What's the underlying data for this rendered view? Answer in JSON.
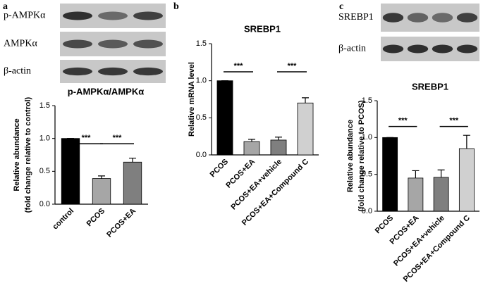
{
  "chart_data": [
    {
      "type": "bar",
      "panel": "a",
      "title": "p-AMPKα/AMPKα",
      "blot_labels": [
        "p-AMPKα",
        "AMPKα",
        "β-actin"
      ],
      "ylabel": [
        "Relative abundance",
        "(fold change relative to control)"
      ],
      "categories": [
        "control",
        "PCOS",
        "PCOS+EA"
      ],
      "values": [
        1.0,
        0.39,
        0.64
      ],
      "errors": [
        0,
        0.04,
        0.06
      ],
      "colors": [
        "#000000",
        "#a6a6a6",
        "#7f7f7f"
      ],
      "ylim": [
        0,
        1.5
      ],
      "yticks": [
        {
          "value": 0,
          "label": "0.0"
        },
        {
          "value": 0.5,
          "label": "0.5"
        },
        {
          "value": 1,
          "label": "1.0"
        },
        {
          "value": 1.5,
          "label": "1.5"
        }
      ],
      "annotations": [
        "***",
        "***"
      ]
    },
    {
      "type": "bar",
      "panel": "b",
      "title": "SREBP1",
      "ylabel": [
        "Relative mRNA level"
      ],
      "categories": [
        "PCOS",
        "PCOS+EA",
        "PCOS+EA+vehicle",
        "PCOS+EA+Compound C"
      ],
      "values": [
        1.0,
        0.18,
        0.2,
        0.7
      ],
      "errors": [
        0,
        0.03,
        0.04,
        0.07
      ],
      "colors": [
        "#000000",
        "#a6a6a6",
        "#7f7f7f",
        "#d0d0d0"
      ],
      "ylim": [
        0,
        1.5
      ],
      "yticks": [
        {
          "value": 0,
          "label": "0.0"
        },
        {
          "value": 0.5,
          "label": "0.5"
        },
        {
          "value": 1,
          "label": "1.0"
        },
        {
          "value": 1.5,
          "label": "1.5"
        }
      ],
      "annotations": [
        "***",
        "***"
      ]
    },
    {
      "type": "bar",
      "panel": "c",
      "title": "SREBP1",
      "blot_labels": [
        "SREBP1",
        "β-actin"
      ],
      "ylabel": [
        "Relative abundance",
        "(fold change relative to PCOS)"
      ],
      "categories": [
        "PCOS",
        "PCOS+EA",
        "PCOS+EA+vehicle",
        "PCOS+EA+Compound C"
      ],
      "values": [
        1.0,
        0.45,
        0.46,
        0.85
      ],
      "errors": [
        0,
        0.1,
        0.1,
        0.18
      ],
      "colors": [
        "#000000",
        "#a6a6a6",
        "#7f7f7f",
        "#d0d0d0"
      ],
      "ylim": [
        0,
        1.5
      ],
      "yticks": [
        {
          "value": 0,
          "label": "0.0"
        },
        {
          "value": 0.5,
          "label": "0.5"
        },
        {
          "value": 1,
          "label": "1.0"
        },
        {
          "value": 1.5,
          "label": "1.5"
        }
      ],
      "annotations": [
        "***",
        "***"
      ]
    }
  ]
}
